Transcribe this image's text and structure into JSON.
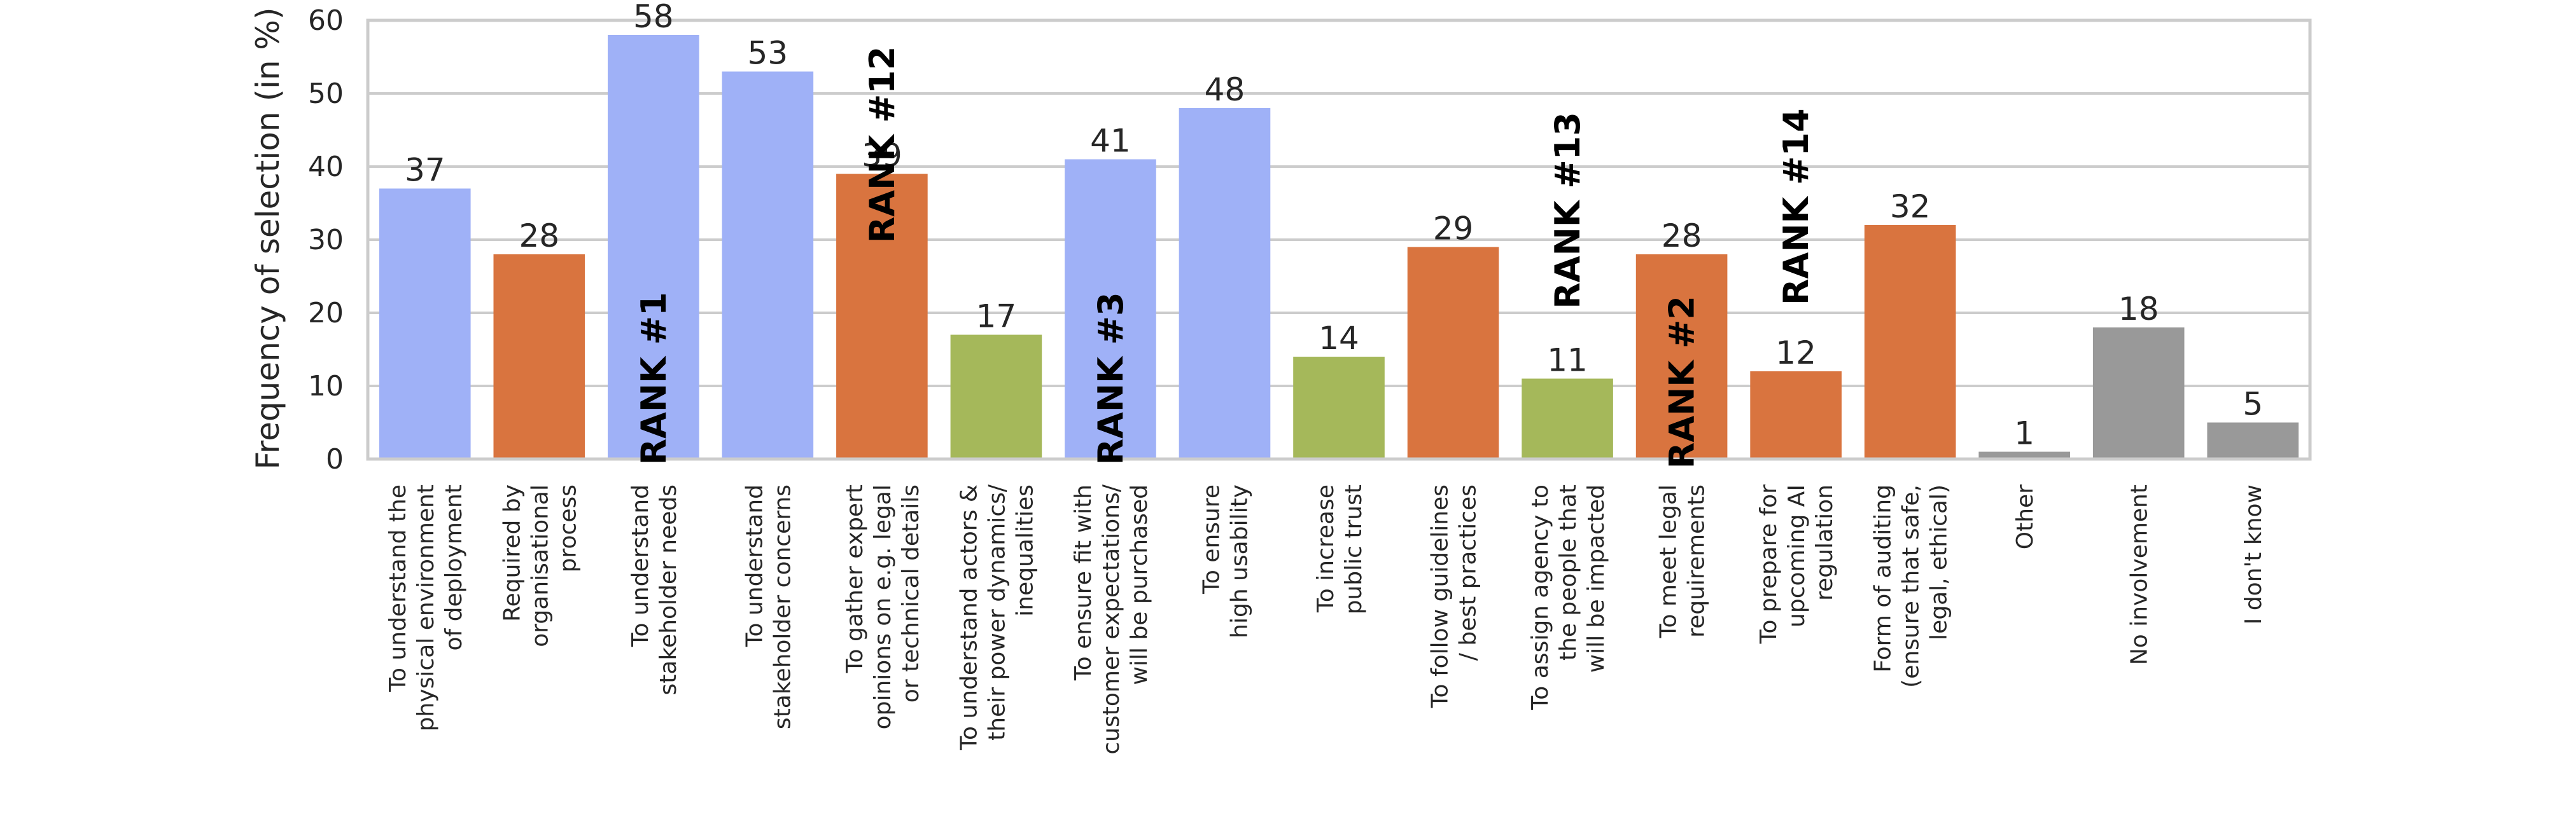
{
  "chart_data": {
    "type": "bar",
    "ylabel": "Frequency of selection (in %)",
    "xlabel": "",
    "ylim": [
      0,
      60
    ],
    "yticks": [
      0,
      10,
      20,
      30,
      40,
      50,
      60
    ],
    "grid": true,
    "colors": {
      "blue": "#9fb1f7",
      "orange": "#d9743f",
      "green": "#a5b85a",
      "gray": "#999999",
      "grid": "#cccccc",
      "frame": "#cccccc"
    },
    "categories": [
      [
        "To understand the",
        "physical environment",
        "of deployment"
      ],
      [
        "Required by",
        "organisational",
        "process"
      ],
      [
        "To understand",
        "stakeholder needs"
      ],
      [
        "To understand",
        "stakeholder concerns"
      ],
      [
        "To gather expert",
        "opinions on e.g. legal",
        "or technical details"
      ],
      [
        "To understand actors &",
        "their power dynamics/",
        "inequalities"
      ],
      [
        "To ensure fit with",
        "customer expectations/",
        "will be purchased"
      ],
      [
        "To ensure",
        "high usability"
      ],
      [
        "To increase",
        "public trust"
      ],
      [
        "To follow guidelines",
        "/ best practices"
      ],
      [
        "To assign agency to",
        "the people that",
        "will be impacted"
      ],
      [
        "To meet legal",
        "requirements"
      ],
      [
        "To prepare for",
        "upcoming AI",
        "regulation"
      ],
      [
        "Form of auditing",
        "(ensure that safe,",
        "legal, ethical)"
      ],
      [
        "Other"
      ],
      [
        "No involvement"
      ],
      [
        "I don't know"
      ]
    ],
    "values": [
      37,
      28,
      58,
      53,
      39,
      17,
      41,
      48,
      14,
      29,
      11,
      28,
      12,
      32,
      1,
      18,
      5
    ],
    "bar_colors": [
      "blue",
      "orange",
      "blue",
      "blue",
      "orange",
      "green",
      "blue",
      "blue",
      "green",
      "orange",
      "green",
      "orange",
      "orange",
      "orange",
      "gray",
      "gray",
      "gray"
    ],
    "annotations": [
      {
        "index": 2,
        "text": "RANK  #1",
        "y_center": 11
      },
      {
        "index": 4,
        "text": "RANK  #12",
        "y_center": 43
      },
      {
        "index": 6,
        "text": "RANK  #3",
        "y_center": 11
      },
      {
        "index": 10,
        "text": "RANK  #13",
        "y_center": 34
      },
      {
        "index": 11,
        "text": "RANK  #2",
        "y_center": 10.5
      },
      {
        "index": 12,
        "text": "RANK  #14",
        "y_center": 34.5
      }
    ]
  }
}
